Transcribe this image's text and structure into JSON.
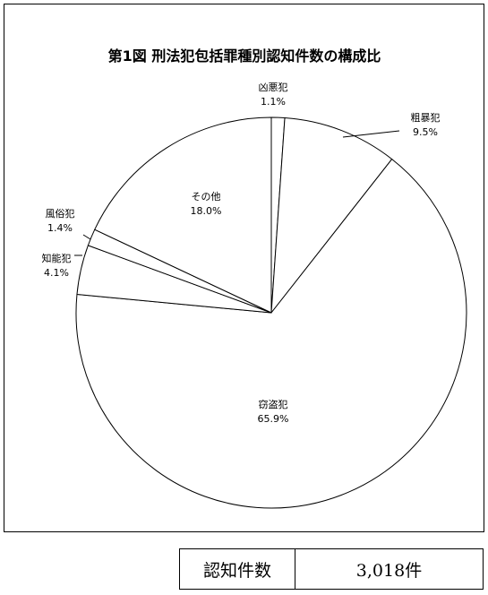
{
  "chart_data": {
    "type": "pie",
    "title": "第1図 刑法犯包括罪種別認知件数の構成比",
    "categories": [
      "凶悪犯",
      "粗暴犯",
      "窃盗犯",
      "知能犯",
      "風俗犯",
      "その他"
    ],
    "values": [
      1.1,
      9.5,
      65.9,
      4.1,
      1.4,
      18.0
    ],
    "value_labels": [
      "1.1%",
      "9.5%",
      "65.9%",
      "4.1%",
      "1.4%",
      "18.0%"
    ],
    "start": "top",
    "direction": "clockwise",
    "slice_color": "#ffffff",
    "edge_color": "#000000"
  },
  "summary": {
    "label": "認知件数",
    "value": "3,018件"
  }
}
